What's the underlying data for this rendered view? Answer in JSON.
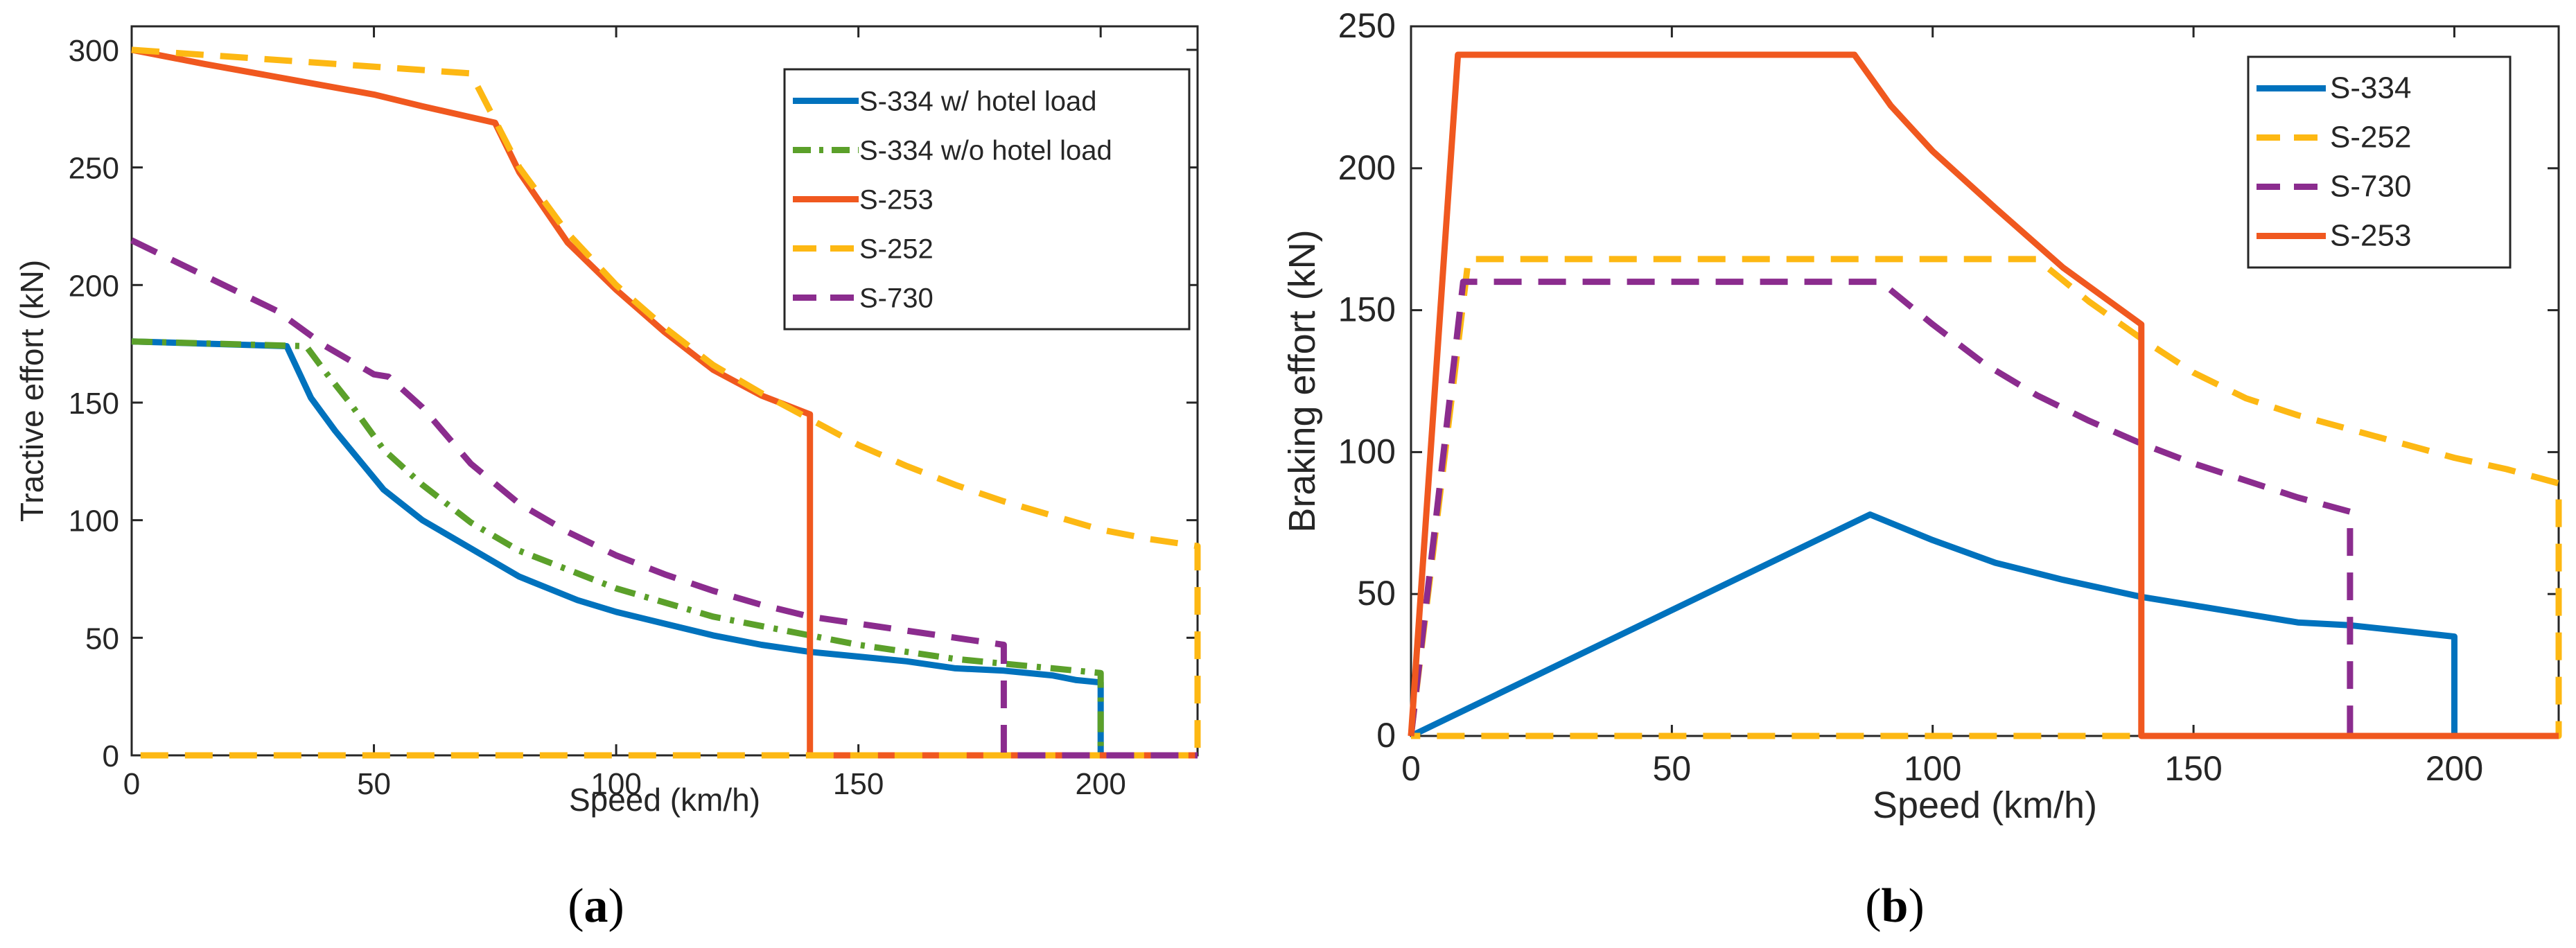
{
  "colors": {
    "blue": "#0072BD",
    "green": "#5BA02A",
    "red": "#F0581F",
    "orange": "#FDB813",
    "purple": "#8B2C8E"
  },
  "chart_data": [
    {
      "type": "line",
      "panel": "a",
      "caption_letter": "a",
      "xlabel": "Speed (km/h)",
      "ylabel": "Tractive effort (kN)",
      "xlim": [
        0,
        220
      ],
      "ylim": [
        0,
        310
      ],
      "xticks": [
        0,
        50,
        100,
        150,
        200
      ],
      "yticks": [
        0,
        50,
        100,
        150,
        200,
        250,
        300
      ],
      "grid": false,
      "legend_position": "top-right",
      "series": [
        {
          "name": "S-334 w/ hotel load",
          "color": "#0072BD",
          "dash": "solid",
          "x": [
            0,
            32,
            37,
            42,
            52,
            60,
            70,
            80,
            92,
            100,
            110,
            120,
            130,
            140,
            150,
            160,
            170,
            180,
            190,
            195,
            200,
            200
          ],
          "y": [
            176,
            174,
            152,
            138,
            113,
            100,
            88,
            76,
            66,
            61,
            56,
            51,
            47,
            44,
            42,
            40,
            37,
            36,
            34,
            32,
            31,
            0
          ]
        },
        {
          "name": "S-334 w/o hotel load",
          "color": "#5BA02A",
          "dash": "dashdot",
          "x": [
            0,
            36,
            40,
            45,
            52,
            60,
            70,
            80,
            90,
            100,
            110,
            120,
            130,
            140,
            150,
            160,
            170,
            180,
            190,
            200,
            200
          ],
          "y": [
            176,
            174,
            163,
            150,
            130,
            115,
            99,
            87,
            79,
            71,
            65,
            59,
            55,
            51,
            47,
            44,
            41,
            39,
            37,
            35,
            0
          ]
        },
        {
          "name": "S-253",
          "color": "#F0581F",
          "dash": "solid",
          "x": [
            0,
            15,
            50,
            60,
            75,
            80,
            90,
            100,
            110,
            120,
            130,
            140,
            140,
            220
          ],
          "y": [
            300,
            294,
            281,
            276,
            269,
            248,
            218,
            198,
            180,
            164,
            153,
            145,
            0,
            0
          ]
        },
        {
          "name": "S-252",
          "color": "#FDB813",
          "dash": "dash",
          "x": [
            0,
            70,
            80,
            90,
            100,
            110,
            120,
            130,
            140,
            150,
            160,
            170,
            180,
            190,
            200,
            210,
            220,
            220,
            0
          ],
          "y": [
            300,
            290,
            250,
            222,
            200,
            182,
            166,
            154,
            143,
            132,
            123,
            115,
            108,
            102,
            96,
            92,
            89,
            0,
            0
          ]
        },
        {
          "name": "S-730",
          "color": "#8B2C8E",
          "dash": "dash",
          "x": [
            0,
            30,
            40,
            50,
            53,
            60,
            70,
            80,
            90,
            100,
            110,
            120,
            130,
            140,
            150,
            160,
            170,
            180,
            180,
            220
          ],
          "y": [
            219,
            189,
            174,
            162,
            161,
            148,
            124,
            107,
            95,
            85,
            77,
            70,
            64,
            59,
            56,
            53,
            50,
            47,
            0,
            0
          ]
        }
      ]
    },
    {
      "type": "line",
      "panel": "b",
      "caption_letter": "b",
      "xlabel": "Speed (km/h)",
      "ylabel": "Braking effort (kN)",
      "xlim": [
        0,
        220
      ],
      "ylim": [
        0,
        250
      ],
      "xticks": [
        0,
        50,
        100,
        150,
        200
      ],
      "yticks": [
        0,
        50,
        100,
        150,
        200,
        250
      ],
      "grid": false,
      "legend_position": "top-right",
      "series": [
        {
          "name": "S-334",
          "color": "#0072BD",
          "dash": "solid",
          "x": [
            0,
            88,
            100,
            112,
            125,
            140,
            150,
            160,
            170,
            180,
            190,
            200,
            200,
            220
          ],
          "y": [
            0,
            78,
            69,
            61,
            55,
            49,
            46,
            43,
            40,
            39,
            37,
            35,
            0,
            0
          ]
        },
        {
          "name": "S-252",
          "color": "#FDB813",
          "dash": "dash",
          "x": [
            0,
            11,
            120,
            130,
            140,
            150,
            160,
            170,
            180,
            190,
            200,
            210,
            220,
            220,
            0
          ],
          "y": [
            0,
            168,
            168,
            153,
            140,
            128,
            119,
            113,
            108,
            103,
            98,
            94,
            89,
            0,
            0
          ]
        },
        {
          "name": "S-730",
          "color": "#8B2C8E",
          "dash": "dash",
          "x": [
            0,
            10,
            90,
            100,
            110,
            120,
            130,
            140,
            150,
            160,
            170,
            180,
            180
          ],
          "y": [
            0,
            160,
            160,
            145,
            131,
            120,
            111,
            103,
            96,
            90,
            84,
            79,
            0
          ]
        },
        {
          "name": "S-253",
          "color": "#F0581F",
          "dash": "solid",
          "x": [
            0,
            9,
            85,
            92,
            100,
            112,
            125,
            140,
            140,
            220
          ],
          "y": [
            0,
            240,
            240,
            222,
            206,
            186,
            165,
            145,
            0,
            0
          ]
        }
      ]
    }
  ]
}
